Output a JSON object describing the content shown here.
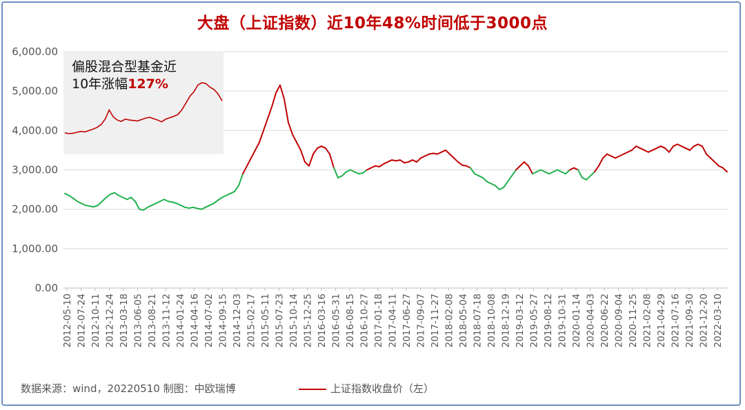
{
  "title": "大盘（上证指数）近10年48%时间低于3000点",
  "footer": {
    "source": "数据来源：wind，20220510 制图：中欧瑞博",
    "legend_label": "上证指数收盘价（左）"
  },
  "inset": {
    "line1": "偏股混合型基金近",
    "line2_prefix": "10年涨幅",
    "line2_value": "127%",
    "series": [
      100,
      98,
      99,
      101,
      103,
      102,
      105,
      108,
      112,
      118,
      130,
      150,
      135,
      128,
      125,
      130,
      128,
      127,
      126,
      129,
      132,
      134,
      131,
      128,
      124,
      130,
      133,
      136,
      140,
      150,
      165,
      180,
      190,
      205,
      210,
      208,
      200,
      195,
      185,
      170
    ]
  },
  "colors": {
    "above": "#c00000",
    "below": "#22b14c",
    "grid": "#d9d9d9",
    "inset_bg": "#f0f0f0"
  },
  "chart_data": {
    "type": "line",
    "title": "大盘（上证指数）近10年48%时间低于3000点",
    "ylabel": "",
    "xlabel": "",
    "ylim": [
      0,
      6000
    ],
    "yticks": [
      "0.00",
      "1,000.00",
      "2,000.00",
      "3,000.00",
      "4,000.00",
      "5,000.00",
      "6,000.00"
    ],
    "xticks": [
      "2012-05-10",
      "2012-07-24",
      "2012-10-11",
      "2012-12-24",
      "2013-03-18",
      "2013-06-05",
      "2013-08-21",
      "2013-11-12",
      "2014-01-24",
      "2014-04-16",
      "2014-07-02",
      "2014-09-15",
      "2014-12-03",
      "2015-02-17",
      "2015-05-11",
      "2015-07-23",
      "2015-10-14",
      "2015-12-25",
      "2016-03-16",
      "2016-05-31",
      "2016-08-15",
      "2016-10-27",
      "2017-01-18",
      "2017-04-11",
      "2017-06-27",
      "2017-09-07",
      "2017-11-27",
      "2018-02-08",
      "2018-05-04",
      "2018-07-18",
      "2018-10-08",
      "2018-12-19",
      "2019-03-12",
      "2019-05-27",
      "2019-08-12",
      "2019-10-31",
      "2020-01-14",
      "2020-04-03",
      "2020-06-22",
      "2020-09-04",
      "2020-11-25",
      "2021-02-08",
      "2021-04-29",
      "2021-07-16",
      "2021-09-30",
      "2021-12-20",
      "2022-03-10"
    ],
    "threshold": 3000,
    "series": [
      {
        "name": "上证指数收盘价（左）",
        "values": [
          2400,
          2350,
          2280,
          2200,
          2150,
          2100,
          2080,
          2060,
          2100,
          2200,
          2300,
          2380,
          2420,
          2350,
          2300,
          2250,
          2300,
          2200,
          2000,
          1980,
          2050,
          2100,
          2150,
          2200,
          2250,
          2200,
          2180,
          2150,
          2100,
          2050,
          2030,
          2050,
          2020,
          2000,
          2050,
          2100,
          2150,
          2230,
          2300,
          2350,
          2400,
          2450,
          2600,
          2900,
          3100,
          3300,
          3500,
          3700,
          4000,
          4300,
          4600,
          4950,
          5150,
          4800,
          4200,
          3900,
          3700,
          3500,
          3200,
          3100,
          3400,
          3550,
          3600,
          3550,
          3400,
          3050,
          2800,
          2850,
          2950,
          3000,
          2950,
          2900,
          2920,
          3000,
          3050,
          3100,
          3080,
          3150,
          3200,
          3250,
          3230,
          3250,
          3180,
          3200,
          3250,
          3200,
          3300,
          3350,
          3400,
          3420,
          3400,
          3450,
          3500,
          3400,
          3300,
          3200,
          3120,
          3100,
          3050,
          2900,
          2850,
          2800,
          2700,
          2650,
          2600,
          2500,
          2550,
          2700,
          2850,
          3000,
          3100,
          3200,
          3100,
          2900,
          2950,
          3000,
          2950,
          2900,
          2950,
          3000,
          2950,
          2900,
          3000,
          3050,
          3000,
          2800,
          2750,
          2850,
          2950,
          3100,
          3300,
          3400,
          3350,
          3300,
          3350,
          3400,
          3450,
          3500,
          3600,
          3550,
          3500,
          3450,
          3500,
          3550,
          3600,
          3550,
          3450,
          3600,
          3650,
          3600,
          3550,
          3500,
          3600,
          3650,
          3600,
          3400,
          3300,
          3200,
          3100,
          3050,
          2950
        ]
      }
    ]
  }
}
